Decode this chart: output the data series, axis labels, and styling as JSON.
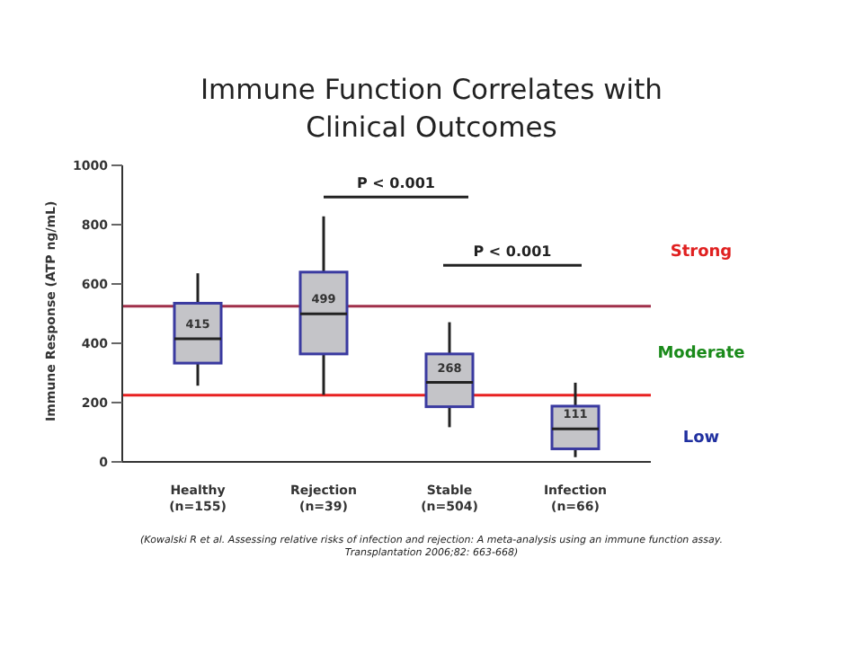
{
  "chart_data": {
    "type": "box",
    "title": "Immune Function Correlates with Clinical Outcomes",
    "ylabel": "Immune Response (ATP ng/mL)",
    "categories": [
      "Healthy\n(n=155)",
      "Rejection\n(n=39)",
      "Stable\n(n=504)",
      "Infection\n(n=66)"
    ],
    "boxes": [
      {
        "low": 257,
        "q1": 333,
        "median": 415,
        "q3": 535,
        "high": 636
      },
      {
        "low": 226,
        "q1": 364,
        "median": 499,
        "q3": 640,
        "high": 828
      },
      {
        "low": 117,
        "q1": 186,
        "median": 268,
        "q3": 364,
        "high": 471
      },
      {
        "low": 16,
        "q1": 44,
        "median": 111,
        "q3": 188,
        "high": 267
      }
    ],
    "color": "#c4c4c8",
    "ylim": [
      0,
      1000
    ],
    "yticks": [
      0,
      200,
      400,
      600,
      800,
      1000
    ],
    "ref_lines": [
      {
        "axis": "y",
        "value": 525,
        "color": "#a0304a"
      },
      {
        "axis": "y",
        "value": 225,
        "color": "#e82020"
      }
    ],
    "annotations": [
      "P < 0.001",
      "P < 0.001",
      "Strong",
      "Moderate",
      "Low",
      {
        "text": "415",
        "x": "Healthy\n(n=155)",
        "y": 415
      },
      {
        "text": "499",
        "x": "Rejection\n(n=39)",
        "y": 499
      },
      {
        "text": "268",
        "x": "Stable\n(n=504)",
        "y": 268
      },
      {
        "text": "111",
        "x": "Infection\n(n=66)",
        "y": 111
      },
      "(Kowalski R et al. Assessing relative risks of infection and rejection: A meta-analysis using an immune function assay.",
      "Transplantation 2006;82: 663-668)"
    ]
  }
}
